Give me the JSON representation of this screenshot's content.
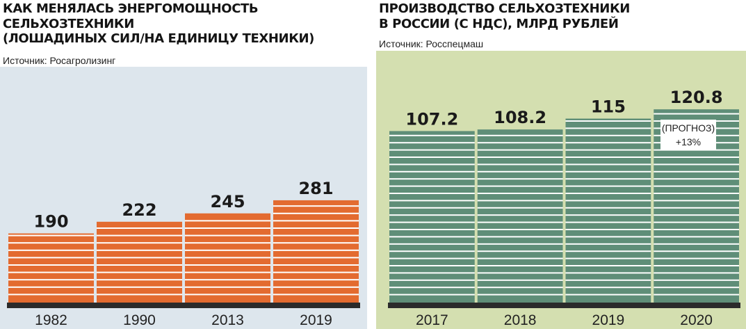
{
  "colors": {
    "left_bar": "#e36b30",
    "left_background": "#dde6ed",
    "right_bar": "#5f8e78",
    "right_background": "#d4dfb0",
    "base": "#2b2b2b",
    "stripe": "#ffffff"
  },
  "forecast_note": {
    "line1": "(ПРОГНОЗ)",
    "line2": "+13%"
  },
  "chart_data": [
    {
      "type": "bar",
      "title_lines": [
        "КАК МЕНЯЛАСЬ ЭНЕРГОМОЩНОСТЬ",
        "СЕЛЬХОЗТЕХНИКИ",
        "(ЛОШАДИНЫХ СИЛ/НА ЕДИНИЦУ ТЕХНИКИ)"
      ],
      "source": "Источник: Росагролизинг",
      "categories": [
        "1982",
        "1990",
        "2013",
        "2019"
      ],
      "values": [
        190,
        222,
        245,
        281
      ],
      "value_labels": [
        "190",
        "222",
        "245",
        "281"
      ],
      "xlabel": "",
      "ylabel": "",
      "grid": false,
      "legend": "none"
    },
    {
      "type": "bar",
      "title_lines": [
        "ПРОИЗВОДСТВО СЕЛЬХОЗТЕХНИКИ",
        "В РОССИИ (С НДС), МЛРД РУБЛЕЙ"
      ],
      "source": "Источник: Росспецмаш",
      "categories": [
        "2017",
        "2018",
        "2019",
        "2020"
      ],
      "values": [
        107.2,
        108.2,
        115,
        120.8
      ],
      "value_labels": [
        "107.2",
        "108.2",
        "115",
        "120.8"
      ],
      "xlabel": "",
      "ylabel": "",
      "grid": false,
      "legend": "none"
    }
  ]
}
